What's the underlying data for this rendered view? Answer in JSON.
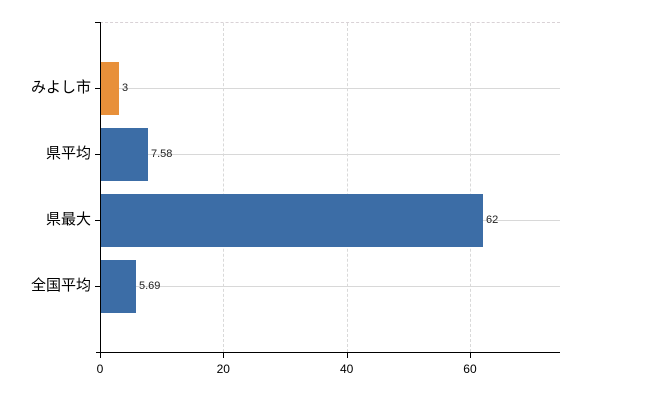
{
  "chart": {
    "background_color": "#ffffff",
    "axis_color": "#000000",
    "horizontal_gridline_color": "#d8d8d8",
    "vertical_gridline_style": "dashed",
    "accent_orange": "#e8903a",
    "accent_blue": "#3c6da6"
  },
  "chart_data": {
    "type": "bar",
    "orientation": "horizontal",
    "categories": [
      "みよし市",
      "県平均",
      "県最大",
      "全国平均"
    ],
    "values": [
      3,
      7.58,
      62,
      5.69
    ],
    "bar_colors": [
      "#e8903a",
      "#3c6da6",
      "#3c6da6",
      "#3c6da6"
    ],
    "xticks": [
      0,
      20,
      40,
      60
    ],
    "xlim": [
      0,
      74.6
    ],
    "grid": true,
    "legend_position": "none"
  }
}
